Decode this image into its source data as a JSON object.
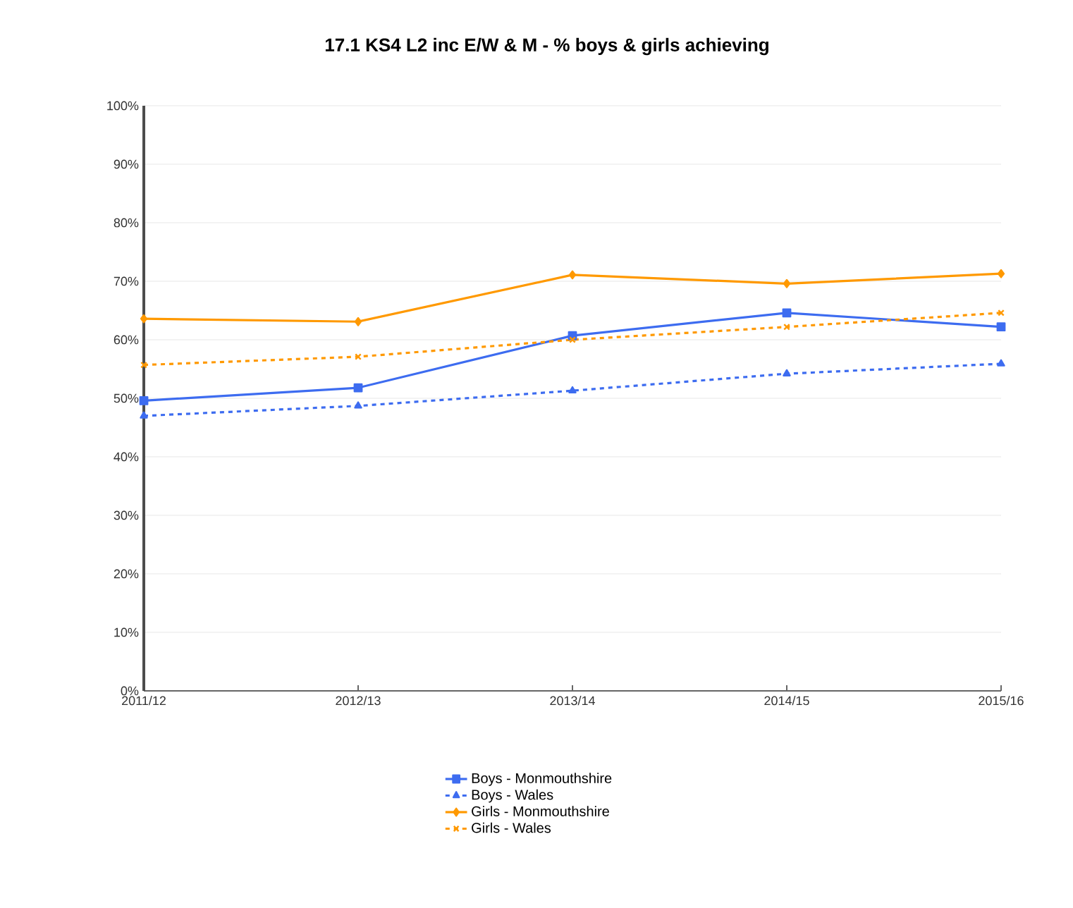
{
  "chart_data": {
    "type": "line",
    "title": "17.1  KS4 L2 inc E/W & M - % boys & girls achieving",
    "categories": [
      "2011/12",
      "2012/13",
      "2013/14",
      "2014/15",
      "2015/16"
    ],
    "series": [
      {
        "name": "Boys - Monmouthshire",
        "color": "#3d6cf0",
        "marker": "square",
        "line_style": "solid",
        "values": [
          49.6,
          51.8,
          60.7,
          64.6,
          62.2
        ]
      },
      {
        "name": "Boys - Wales",
        "color": "#3d6cf0",
        "marker": "triangle",
        "line_style": "dashed",
        "values": [
          47.0,
          48.7,
          51.3,
          54.2,
          55.9
        ]
      },
      {
        "name": "Girls - Monmouthshire",
        "color": "#ff9900",
        "marker": "diamond",
        "line_style": "solid",
        "values": [
          63.6,
          63.1,
          71.1,
          69.6,
          71.3
        ]
      },
      {
        "name": "Girls - Wales",
        "color": "#ff9900",
        "marker": "cross",
        "line_style": "dashed",
        "values": [
          55.7,
          57.1,
          60.0,
          62.2,
          64.6
        ]
      }
    ],
    "ylim": [
      0,
      100
    ],
    "yticks": [
      {
        "value": 0,
        "label": "0%"
      },
      {
        "value": 10,
        "label": "10%"
      },
      {
        "value": 20,
        "label": "20%"
      },
      {
        "value": 30,
        "label": "30%"
      },
      {
        "value": 40,
        "label": "40%"
      },
      {
        "value": 50,
        "label": "50%"
      },
      {
        "value": 60,
        "label": "60%"
      },
      {
        "value": 70,
        "label": "70%"
      },
      {
        "value": 80,
        "label": "80%"
      },
      {
        "value": 90,
        "label": "90%"
      },
      {
        "value": 100,
        "label": "100%"
      }
    ],
    "grid": "y",
    "legend": "bottom"
  }
}
